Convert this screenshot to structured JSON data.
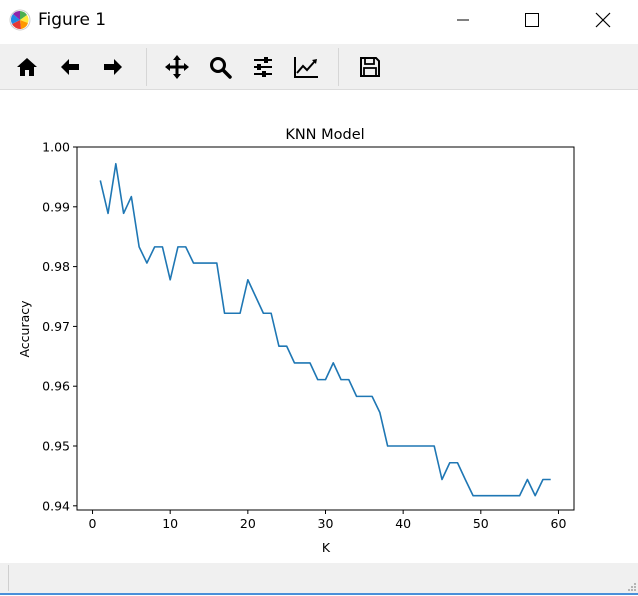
{
  "window": {
    "title": "Figure 1",
    "controls": [
      "minimize-icon",
      "maximize-icon",
      "close-icon"
    ]
  },
  "toolbar": {
    "buttons": [
      {
        "name": "home",
        "icon": "home-icon"
      },
      {
        "name": "back",
        "icon": "arrow-left-icon"
      },
      {
        "name": "forward",
        "icon": "arrow-right-icon"
      },
      {
        "name": "pan",
        "icon": "move-icon"
      },
      {
        "name": "zoom",
        "icon": "magnifier-icon"
      },
      {
        "name": "subplots",
        "icon": "sliders-icon"
      },
      {
        "name": "customize",
        "icon": "line-chart-icon"
      },
      {
        "name": "save",
        "icon": "floppy-disk-icon"
      }
    ]
  },
  "status": {
    "text": ""
  },
  "colors": {
    "line": "#1f77b4",
    "toolbar_bg": "#f0f0f0",
    "status_accent": "#4a90d9"
  },
  "chart_data": {
    "type": "line",
    "title": "KNN Model",
    "xlabel": "K",
    "ylabel": "Accuracy",
    "xlim": [
      -2,
      62
    ],
    "ylim": [
      0.9393,
      1.0
    ],
    "grid": false,
    "xticks": [
      0,
      10,
      20,
      30,
      40,
      50,
      60
    ],
    "yticks": [
      0.94,
      0.95,
      0.96,
      0.97,
      0.98,
      0.99,
      1.0
    ],
    "ytick_labels": [
      "0.94",
      "0.95",
      "0.96",
      "0.97",
      "0.98",
      "0.99",
      "1.00"
    ],
    "series": [
      {
        "x": [
          1,
          2,
          3,
          4,
          5,
          6,
          7,
          8,
          9,
          10,
          11,
          12,
          13,
          14,
          15,
          16,
          17,
          18,
          19,
          20,
          21,
          22,
          23,
          24,
          25,
          26,
          27,
          28,
          29,
          30,
          31,
          32,
          33,
          34,
          35,
          36,
          37,
          38,
          39,
          40,
          41,
          42,
          43,
          44,
          45,
          46,
          47,
          48,
          49,
          50,
          51,
          52,
          53,
          54,
          55,
          56,
          57,
          58,
          59
        ],
        "y": [
          0.9944,
          0.9889,
          0.9972,
          0.9889,
          0.9917,
          0.9833,
          0.9806,
          0.9833,
          0.9833,
          0.9778,
          0.9833,
          0.9833,
          0.9806,
          0.9806,
          0.9806,
          0.9806,
          0.9722,
          0.9722,
          0.9722,
          0.9778,
          0.975,
          0.9722,
          0.9722,
          0.9667,
          0.9667,
          0.9639,
          0.9639,
          0.9639,
          0.9611,
          0.9611,
          0.9639,
          0.9611,
          0.9611,
          0.9583,
          0.9583,
          0.9583,
          0.9556,
          0.95,
          0.95,
          0.95,
          0.95,
          0.95,
          0.95,
          0.95,
          0.9444,
          0.9472,
          0.9472,
          0.9444,
          0.9417,
          0.9417,
          0.9417,
          0.9417,
          0.9417,
          0.9417,
          0.9417,
          0.9444,
          0.9417,
          0.9444,
          0.9444
        ]
      }
    ]
  }
}
